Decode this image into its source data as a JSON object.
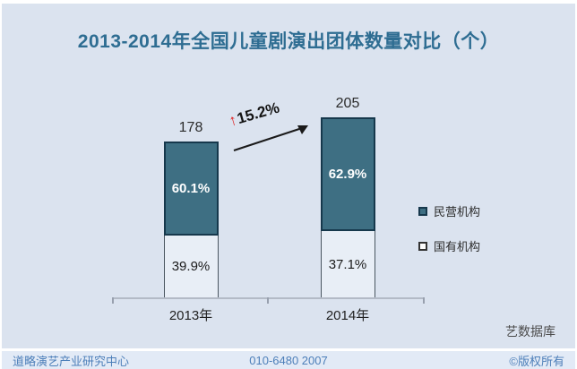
{
  "title": "2013-2014年全国儿童剧演出团体数量对比（个）",
  "chart_data": {
    "type": "bar",
    "stacked": true,
    "categories": [
      "2013年",
      "2014年"
    ],
    "totals": [
      178,
      205
    ],
    "value_labels": [
      "178",
      "205"
    ],
    "series": [
      {
        "name": "民营机构",
        "values_pct": [
          60.1,
          62.9
        ],
        "color": "#3e6f83"
      },
      {
        "name": "国有机构",
        "values_pct": [
          39.9,
          37.1
        ],
        "color": "#e8eef6"
      }
    ],
    "segment_labels": [
      [
        "60.1%",
        "39.9%"
      ],
      [
        "62.9%",
        "37.1%"
      ]
    ],
    "annotation": {
      "arrow_icon": "↑",
      "growth_label": "15.2%"
    },
    "ylim": [
      0,
      215
    ],
    "grid": false,
    "legend_position": "right"
  },
  "legend": {
    "items": [
      {
        "label": "民营机构",
        "swatch": "filled-teal-square-icon"
      },
      {
        "label": "国有机构",
        "swatch": "outlined-white-square-icon"
      }
    ]
  },
  "source": "艺数据库",
  "footer": {
    "left": "道略演艺产业研究中心",
    "center": "010-6480 2007",
    "right": "©版权所有"
  },
  "colors": {
    "background": "#dbe3ef",
    "bar_fill": "#3e6f83",
    "bar_border": "#16384c",
    "title": "#2e6d92",
    "footer_text": "#4d7fb9",
    "growth_arrow": "#e02020"
  }
}
